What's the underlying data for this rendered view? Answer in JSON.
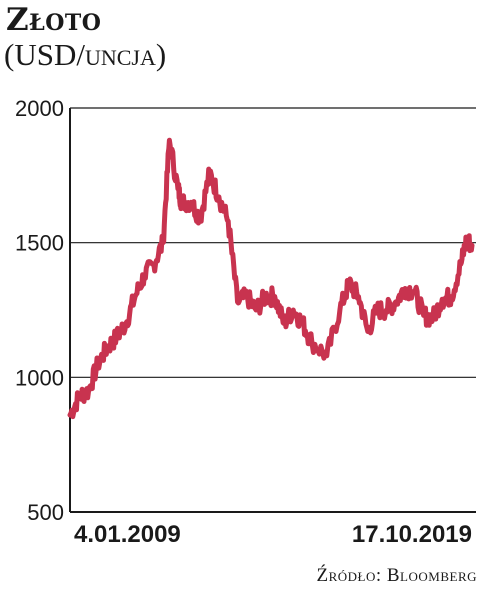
{
  "header": {
    "title": "Złoto",
    "subtitle": "(USD/uncja)"
  },
  "footer": {
    "source": "Źródło: Bloomberg"
  },
  "colors": {
    "series": "#c8334f",
    "axis": "#1a1a1a",
    "grid": "#1a1a1a"
  },
  "chart_data": {
    "type": "line",
    "title": "Złoto",
    "subtitle": "(USD/uncja)",
    "xlabel": "",
    "ylabel": "",
    "ylim": [
      500,
      2000
    ],
    "yticks": [
      500,
      1000,
      1500,
      2000
    ],
    "grid": "horizontal",
    "x_tick_labels": [
      "4.01.2009",
      "17.10.2019"
    ],
    "series": [
      {
        "name": "",
        "x": [
          2009.0,
          2009.25,
          2009.5,
          2009.75,
          2010.0,
          2010.25,
          2010.5,
          2010.75,
          2011.0,
          2011.25,
          2011.5,
          2011.67,
          2011.9,
          2012.0,
          2012.25,
          2012.5,
          2012.75,
          2013.0,
          2013.25,
          2013.5,
          2013.75,
          2014.0,
          2014.25,
          2014.5,
          2014.75,
          2015.0,
          2015.25,
          2015.5,
          2015.9,
          2016.25,
          2016.5,
          2016.75,
          2017.0,
          2017.25,
          2017.5,
          2017.75,
          2018.0,
          2018.25,
          2018.5,
          2018.75,
          2019.0,
          2019.25,
          2019.5,
          2019.65,
          2019.8
        ],
        "values": [
          860,
          930,
          950,
          1050,
          1110,
          1150,
          1200,
          1300,
          1380,
          1420,
          1500,
          1880,
          1700,
          1650,
          1650,
          1590,
          1760,
          1670,
          1580,
          1280,
          1300,
          1250,
          1300,
          1300,
          1200,
          1250,
          1200,
          1130,
          1080,
          1250,
          1350,
          1300,
          1170,
          1250,
          1250,
          1280,
          1330,
          1320,
          1230,
          1220,
          1290,
          1300,
          1420,
          1510,
          1490
        ]
      }
    ]
  }
}
